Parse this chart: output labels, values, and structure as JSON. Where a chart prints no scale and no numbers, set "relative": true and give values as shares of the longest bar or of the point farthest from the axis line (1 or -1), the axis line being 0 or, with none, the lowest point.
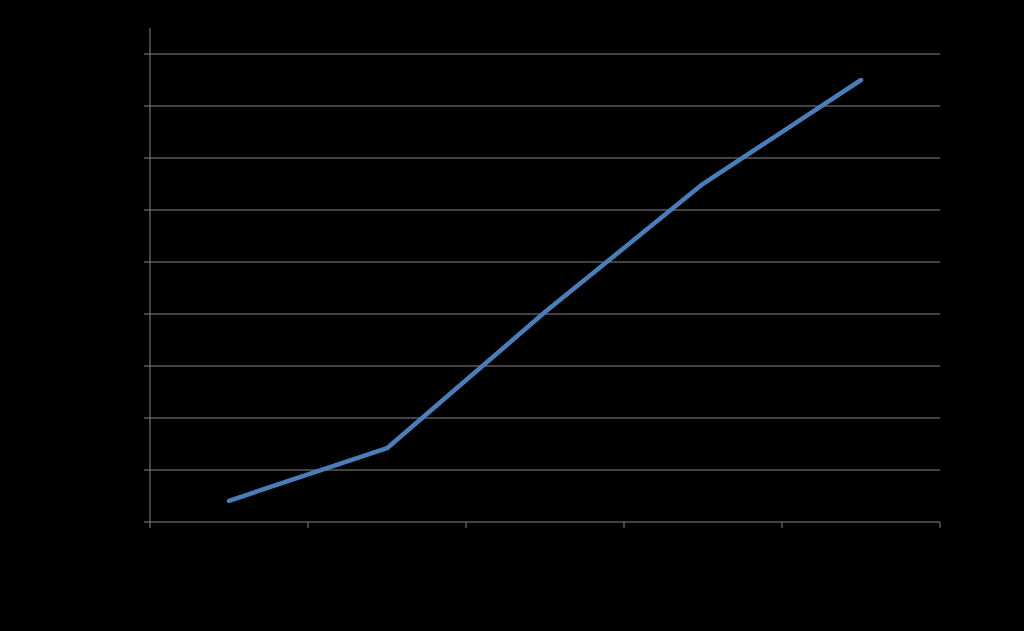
{
  "chart_data": {
    "type": "line",
    "relative": true,
    "categories": [
      null,
      null,
      null,
      null,
      null
    ],
    "series": [
      {
        "color": "#4a7ebb",
        "values": [
          0.048,
          0.167,
          0.475,
          0.765,
          1
        ]
      }
    ],
    "grid": "y"
  }
}
